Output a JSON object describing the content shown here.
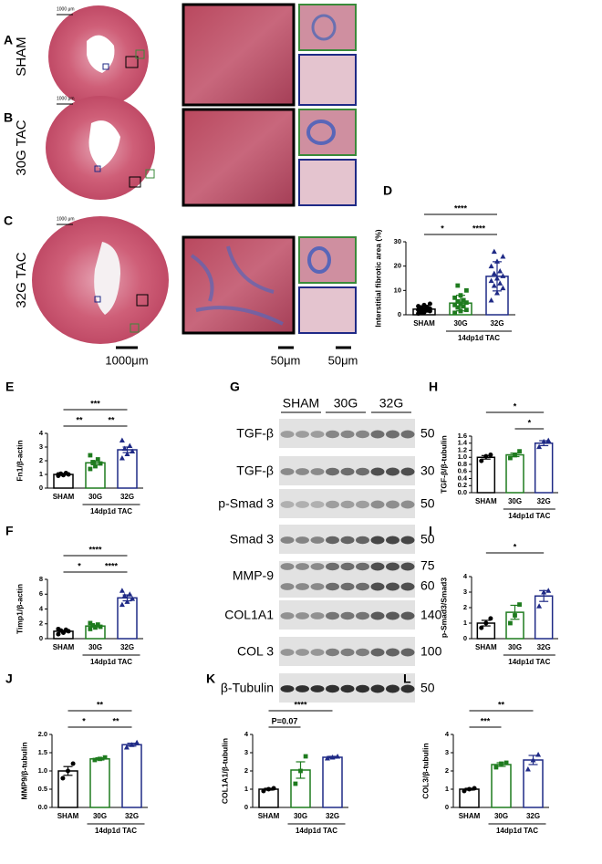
{
  "histology": {
    "rows": [
      {
        "panel": "A",
        "label": "SHAM",
        "scale": "1000 μm"
      },
      {
        "panel": "B",
        "label": "30G TAC",
        "scale": "1000 μm"
      },
      {
        "panel": "C",
        "label": "32G TAC",
        "scale": "1000 μm"
      }
    ],
    "scale_bars": [
      "1000μm",
      "50μm",
      "50μm"
    ]
  },
  "blot": {
    "panel": "G",
    "lanes": [
      "SHAM",
      "30G",
      "32G"
    ],
    "rows": [
      {
        "label": "TGF-β",
        "mw": [
          50
        ]
      },
      {
        "label": "TGF-β",
        "mw": [
          30
        ]
      },
      {
        "label": "p-Smad 3",
        "mw": [
          50
        ]
      },
      {
        "label": "Smad 3",
        "mw": [
          50
        ]
      },
      {
        "label": "MMP-9",
        "mw": [
          75,
          60
        ]
      },
      {
        "label": "COL1A1",
        "mw": [
          140
        ]
      },
      {
        "label": "COL 3",
        "mw": [
          100
        ]
      },
      {
        "label": "β-Tubulin",
        "mw": [
          50
        ]
      }
    ]
  },
  "chart_data": [
    {
      "type": "bar",
      "panel": "D",
      "ylabel": "Interstitial fibrotic area (%)",
      "categories": [
        "SHAM",
        "30G",
        "32G"
      ],
      "group_label": "14dp1d TAC",
      "colors": [
        "#000000",
        "#1e7b1e",
        "#1f2a86"
      ],
      "values": [
        2.3,
        4.8,
        15.8
      ],
      "errors": [
        1.2,
        3.2,
        6.0
      ],
      "points": [
        [
          0.5,
          1,
          1.5,
          1.8,
          2,
          2,
          2.2,
          2.5,
          3,
          3.2,
          3.5,
          4,
          4.5,
          0.8
        ],
        [
          0.8,
          1.5,
          2,
          3,
          3.5,
          4,
          4.5,
          5,
          5.5,
          6,
          7,
          8,
          10,
          12
        ],
        [
          6,
          9,
          11,
          12,
          13,
          14,
          15,
          16,
          17,
          18,
          20,
          22,
          24,
          26
        ]
      ],
      "ylim": [
        0,
        30
      ],
      "yticks": [
        0,
        10,
        20,
        30
      ],
      "comparisons": [
        {
          "pair": [
            0,
            2
          ],
          "label": "****"
        },
        {
          "pair": [
            0,
            1
          ],
          "label": "*"
        },
        {
          "pair": [
            1,
            2
          ],
          "label": "****"
        }
      ]
    },
    {
      "type": "bar",
      "panel": "E",
      "ylabel": "Fn1/β-actin",
      "categories": [
        "SHAM",
        "30G",
        "32G"
      ],
      "group_label": "14dp1d TAC",
      "colors": [
        "#000000",
        "#1e7b1e",
        "#1f2a86"
      ],
      "values": [
        1.0,
        1.85,
        2.8
      ],
      "errors": [
        0.04,
        0.15,
        0.2
      ],
      "points": [
        [
          0.9,
          0.95,
          1.0,
          1.05,
          1.1,
          1.0
        ],
        [
          1.4,
          1.6,
          1.8,
          1.9,
          2.1,
          2.4
        ],
        [
          2.2,
          2.5,
          2.7,
          2.9,
          3.1,
          3.5
        ]
      ],
      "ylim": [
        0,
        4
      ],
      "yticks": [
        0,
        1,
        2,
        3,
        4
      ],
      "comparisons": [
        {
          "pair": [
            0,
            2
          ],
          "label": "***"
        },
        {
          "pair": [
            0,
            1
          ],
          "label": "**"
        },
        {
          "pair": [
            1,
            2
          ],
          "label": "**"
        }
      ]
    },
    {
      "type": "bar",
      "panel": "F",
      "ylabel": "Timp1/β-actin",
      "categories": [
        "SHAM",
        "30G",
        "32G"
      ],
      "group_label": "14dp1d TAC",
      "colors": [
        "#000000",
        "#1e7b1e",
        "#1f2a86"
      ],
      "values": [
        1.0,
        1.7,
        5.5
      ],
      "errors": [
        0.12,
        0.12,
        0.4
      ],
      "points": [
        [
          0.6,
          0.8,
          1.0,
          1.1,
          1.2,
          1.3
        ],
        [
          1.3,
          1.5,
          1.6,
          1.8,
          1.9,
          2.1
        ],
        [
          4.6,
          5.0,
          5.4,
          5.8,
          6.0,
          6.5
        ]
      ],
      "ylim": [
        0,
        8
      ],
      "yticks": [
        0,
        2,
        4,
        6,
        8
      ],
      "comparisons": [
        {
          "pair": [
            0,
            2
          ],
          "label": "****"
        },
        {
          "pair": [
            0,
            1
          ],
          "label": "*"
        },
        {
          "pair": [
            1,
            2
          ],
          "label": "****"
        }
      ]
    },
    {
      "type": "bar",
      "panel": "H",
      "ylabel": "TGF-β/β-tubulin",
      "categories": [
        "SHAM",
        "30G",
        "32G"
      ],
      "group_label": "14dp1d TAC",
      "colors": [
        "#000000",
        "#1e7b1e",
        "#1f2a86"
      ],
      "values": [
        1.0,
        1.07,
        1.4
      ],
      "errors": [
        0.05,
        0.05,
        0.07
      ],
      "points": [
        [
          0.9,
          1.03,
          1.07
        ],
        [
          0.98,
          1.06,
          1.17
        ],
        [
          1.3,
          1.45,
          1.48
        ]
      ],
      "ylim": [
        0,
        1.6
      ],
      "yticks": [
        {
          "value": 0,
          "label": "0.0"
        },
        0.2,
        0.4,
        0.6,
        0.8,
        {
          "value": 1,
          "label": "1.0"
        },
        1.2,
        1.4,
        1.6
      ],
      "comparisons": [
        {
          "pair": [
            0,
            2
          ],
          "label": "*"
        },
        {
          "pair": [
            1,
            2
          ],
          "label": "*"
        }
      ]
    },
    {
      "type": "bar",
      "panel": "I",
      "ylabel": "p-Smad3/Smad3",
      "categories": [
        "SHAM",
        "30G",
        "32G"
      ],
      "group_label": "14dp1d TAC",
      "colors": [
        "#000000",
        "#1e7b1e",
        "#1f2a86"
      ],
      "values": [
        1.0,
        1.7,
        2.75
      ],
      "errors": [
        0.18,
        0.45,
        0.35
      ],
      "points": [
        [
          0.7,
          1.0,
          1.3
        ],
        [
          1.0,
          1.5,
          2.2
        ],
        [
          2.1,
          3.0,
          3.1
        ]
      ],
      "ylim": [
        0,
        4
      ],
      "yticks": [
        0,
        1,
        2,
        3,
        4
      ],
      "comparisons": [
        {
          "pair": [
            0,
            2
          ],
          "label": "*"
        }
      ]
    },
    {
      "type": "bar",
      "panel": "J",
      "ylabel": "MMP9/β-tubulin",
      "categories": [
        "SHAM",
        "30G",
        "32G"
      ],
      "group_label": "14dp1d TAC",
      "colors": [
        "#000000",
        "#1e7b1e",
        "#1f2a86"
      ],
      "values": [
        1.0,
        1.33,
        1.72
      ],
      "errors": [
        0.12,
        0.03,
        0.04
      ],
      "points": [
        [
          0.8,
          1.0,
          1.2
        ],
        [
          1.3,
          1.33,
          1.37
        ],
        [
          1.65,
          1.72,
          1.78
        ]
      ],
      "ylim": [
        0,
        2
      ],
      "yticks": [
        {
          "value": 0,
          "label": "0.0"
        },
        0.5,
        {
          "value": 1,
          "label": "1.0"
        },
        1.5,
        {
          "value": 2,
          "label": "2.0"
        }
      ],
      "comparisons": [
        {
          "pair": [
            0,
            2
          ],
          "label": "**"
        },
        {
          "pair": [
            0,
            1
          ],
          "label": "*"
        },
        {
          "pair": [
            1,
            2
          ],
          "label": "**"
        }
      ]
    },
    {
      "type": "bar",
      "panel": "K",
      "ylabel": "COL1A1/β-tubulin",
      "categories": [
        "SHAM",
        "30G",
        "32G"
      ],
      "group_label": "14dp1d TAC",
      "colors": [
        "#000000",
        "#1e7b1e",
        "#1f2a86"
      ],
      "values": [
        1.0,
        2.05,
        2.75
      ],
      "errors": [
        0.05,
        0.45,
        0.05
      ],
      "points": [
        [
          0.9,
          1.0,
          1.05
        ],
        [
          1.3,
          2.0,
          2.8
        ],
        [
          2.7,
          2.75,
          2.8
        ]
      ],
      "ylim": [
        0,
        4
      ],
      "yticks": [
        0,
        1,
        2,
        3,
        4
      ],
      "comparisons": [
        {
          "pair": [
            0,
            2
          ],
          "label": "****"
        },
        {
          "pair": [
            0,
            1
          ],
          "label": "P=0.07"
        }
      ]
    },
    {
      "type": "bar",
      "panel": "L",
      "ylabel": "COL3/β-tubulin",
      "categories": [
        "SHAM",
        "30G",
        "32G"
      ],
      "group_label": "14dp1d TAC",
      "colors": [
        "#000000",
        "#1e7b1e",
        "#1f2a86"
      ],
      "values": [
        1.0,
        2.35,
        2.6
      ],
      "errors": [
        0.05,
        0.1,
        0.25
      ],
      "points": [
        [
          0.9,
          1.0,
          1.05
        ],
        [
          2.2,
          2.4,
          2.45
        ],
        [
          2.1,
          2.6,
          2.9
        ]
      ],
      "ylim": [
        0,
        4
      ],
      "yticks": [
        0,
        1,
        2,
        3,
        4
      ],
      "comparisons": [
        {
          "pair": [
            0,
            2
          ],
          "label": "**"
        },
        {
          "pair": [
            0,
            1
          ],
          "label": "***"
        }
      ]
    }
  ]
}
